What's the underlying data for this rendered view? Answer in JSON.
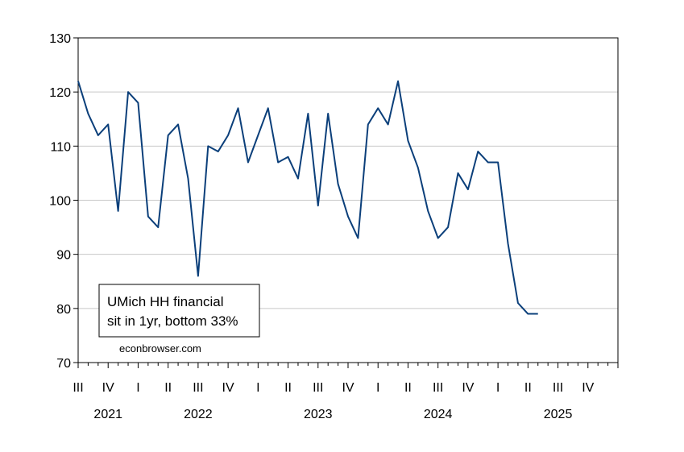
{
  "chart_data": {
    "type": "line",
    "title": "",
    "xlabel": "",
    "ylabel": "",
    "ylim": [
      70,
      130
    ],
    "yticks": [
      70,
      80,
      90,
      100,
      110,
      120,
      130
    ],
    "grid": "horizontal",
    "legend_placement": "bottom-left",
    "legend_lines": [
      "UMich HH financial",
      "sit in 1yr, bottom 33%"
    ],
    "credit": "econbrowser.com",
    "x_start": "2021-07",
    "x_end": "2025-12",
    "quarter_labels": [
      "III",
      "IV",
      "I",
      "II",
      "III",
      "IV",
      "I",
      "II",
      "III",
      "IV",
      "I",
      "II",
      "III",
      "IV",
      "I",
      "II",
      "III",
      "IV"
    ],
    "year_labels": [
      "2021",
      "2022",
      "2023",
      "2024",
      "2025"
    ],
    "series": [
      {
        "name": "UMich HH financial sit in 1yr, bottom 33%",
        "color": "#0b3f7a",
        "points": [
          [
            "2021-07",
            122
          ],
          [
            "2021-08",
            116
          ],
          [
            "2021-09",
            112
          ],
          [
            "2021-10",
            114
          ],
          [
            "2021-11",
            98
          ],
          [
            "2021-12",
            120
          ],
          [
            "2022-01",
            118
          ],
          [
            "2022-02",
            97
          ],
          [
            "2022-03",
            95
          ],
          [
            "2022-04",
            112
          ],
          [
            "2022-05",
            114
          ],
          [
            "2022-06",
            104
          ],
          [
            "2022-07",
            86
          ],
          [
            "2022-08",
            110
          ],
          [
            "2022-09",
            109
          ],
          [
            "2022-10",
            112
          ],
          [
            "2022-11",
            117
          ],
          [
            "2022-12",
            107
          ],
          [
            "2023-01",
            112
          ],
          [
            "2023-02",
            117
          ],
          [
            "2023-03",
            107
          ],
          [
            "2023-04",
            108
          ],
          [
            "2023-05",
            104
          ],
          [
            "2023-06",
            116
          ],
          [
            "2023-07",
            99
          ],
          [
            "2023-08",
            116
          ],
          [
            "2023-09",
            103
          ],
          [
            "2023-10",
            97
          ],
          [
            "2023-11",
            93
          ],
          [
            "2023-12",
            114
          ],
          [
            "2024-01",
            117
          ],
          [
            "2024-02",
            114
          ],
          [
            "2024-03",
            122
          ],
          [
            "2024-04",
            111
          ],
          [
            "2024-05",
            106
          ],
          [
            "2024-06",
            98
          ],
          [
            "2024-07",
            93
          ],
          [
            "2024-08",
            95
          ],
          [
            "2024-09",
            105
          ],
          [
            "2024-10",
            102
          ],
          [
            "2024-11",
            109
          ],
          [
            "2024-12",
            107
          ],
          [
            "2025-01",
            107
          ],
          [
            "2025-02",
            92
          ],
          [
            "2025-03",
            81
          ],
          [
            "2025-04",
            79
          ],
          [
            "2025-05",
            79
          ]
        ]
      }
    ]
  }
}
